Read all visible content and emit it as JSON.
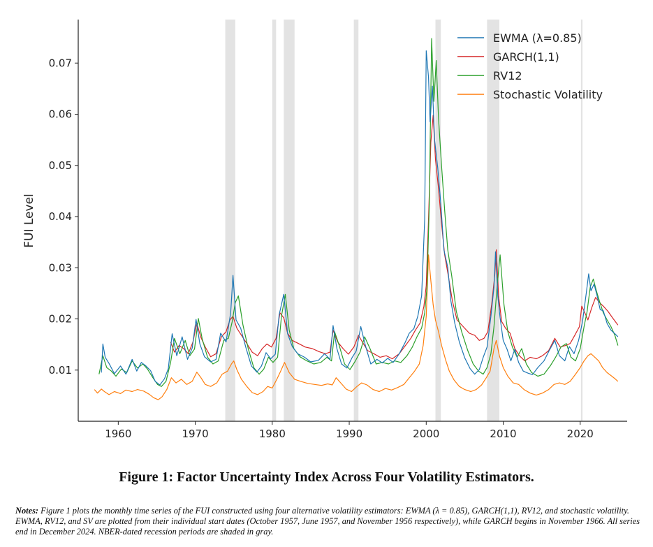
{
  "chart_data": {
    "type": "line",
    "ylabel": "FUI Level",
    "xlim": [
      1954.8,
      2026.1
    ],
    "ylim": [
      0.0,
      0.0785
    ],
    "x_ticks": [
      1960,
      1970,
      1980,
      1990,
      2000,
      2010,
      2020
    ],
    "x_tick_labels": [
      "1960",
      "1970",
      "1980",
      "1990",
      "2000",
      "2010",
      "2020"
    ],
    "y_ticks": [
      0.01,
      0.02,
      0.03,
      0.04,
      0.05,
      0.06,
      0.07
    ],
    "y_tick_labels": [
      "0.01",
      "0.02",
      "0.03",
      "0.04",
      "0.05",
      "0.06",
      "0.07"
    ],
    "legend_position": "top-right",
    "grid": false,
    "recessions": [
      [
        1973.9,
        1975.2
      ],
      [
        1980.0,
        1980.5
      ],
      [
        1981.5,
        1982.9
      ],
      [
        1990.6,
        1991.2
      ],
      [
        2001.2,
        2001.9
      ],
      [
        2007.9,
        2009.5
      ],
      [
        2020.1,
        2020.3
      ]
    ],
    "recession_color": "#e3e3e3",
    "series": [
      {
        "name": "EWMA (λ=0.85)",
        "color": "#1f77b4",
        "x": [
          1957.8,
          1958.0,
          1958.3,
          1958.8,
          1959.5,
          1960.3,
          1961.0,
          1961.8,
          1962.4,
          1963.0,
          1963.6,
          1964.2,
          1964.8,
          1965.4,
          1966.0,
          1966.5,
          1967.0,
          1967.6,
          1968.3,
          1969.0,
          1969.6,
          1970.1,
          1970.6,
          1971.2,
          1972.0,
          1972.7,
          1973.3,
          1974.0,
          1974.6,
          1974.9,
          1975.3,
          1975.9,
          1976.6,
          1977.3,
          1978.0,
          1978.6,
          1979.2,
          1979.8,
          1980.4,
          1980.9,
          1981.5,
          1982.0,
          1982.6,
          1983.3,
          1984.2,
          1985.0,
          1986.0,
          1986.8,
          1987.5,
          1987.9,
          1988.4,
          1989.0,
          1989.7,
          1990.4,
          1990.9,
          1991.5,
          1992.1,
          1992.8,
          1993.6,
          1994.3,
          1995.0,
          1995.7,
          1996.5,
          1997.2,
          1997.8,
          1998.4,
          1998.9,
          1999.4,
          1999.8,
          2000.0,
          2000.3,
          2000.5,
          2000.8,
          2001.1,
          2001.5,
          2001.9,
          2002.3,
          2002.8,
          2003.2,
          2003.7,
          2004.3,
          2005.0,
          2005.7,
          2006.3,
          2006.9,
          2007.4,
          2007.9,
          2008.4,
          2008.8,
          2009.0,
          2009.3,
          2009.6,
          2010.0,
          2010.5,
          2011.0,
          2011.5,
          2012.0,
          2012.6,
          2013.2,
          2013.8,
          2014.5,
          2015.3,
          2016.0,
          2016.7,
          2017.3,
          2018.0,
          2018.6,
          2019.2,
          2019.8,
          2020.3,
          2020.8,
          2021.1,
          2021.4,
          2021.8,
          2022.2,
          2022.6,
          2023.0,
          2023.5,
          2024.0,
          2024.5,
          2024.9
        ],
        "y": [
          0.0095,
          0.0151,
          0.0125,
          0.0113,
          0.0093,
          0.0108,
          0.0092,
          0.0121,
          0.0098,
          0.0115,
          0.0108,
          0.0099,
          0.0078,
          0.0071,
          0.0083,
          0.0103,
          0.0171,
          0.0128,
          0.0165,
          0.0121,
          0.0143,
          0.0199,
          0.0151,
          0.0126,
          0.0116,
          0.0121,
          0.0172,
          0.0155,
          0.0212,
          0.0285,
          0.0198,
          0.0182,
          0.0143,
          0.0108,
          0.0096,
          0.0108,
          0.0134,
          0.0122,
          0.0131,
          0.0208,
          0.0248,
          0.0171,
          0.0146,
          0.0132,
          0.0125,
          0.0116,
          0.0119,
          0.0132,
          0.0121,
          0.0187,
          0.0142,
          0.0112,
          0.0104,
          0.0125,
          0.0137,
          0.0185,
          0.0148,
          0.0112,
          0.0121,
          0.0114,
          0.0123,
          0.0115,
          0.0132,
          0.0152,
          0.0172,
          0.0181,
          0.0205,
          0.0245,
          0.0395,
          0.0724,
          0.0672,
          0.0585,
          0.0655,
          0.0548,
          0.0495,
          0.0425,
          0.0335,
          0.0301,
          0.0235,
          0.0192,
          0.0155,
          0.0124,
          0.0103,
          0.0092,
          0.0101,
          0.0125,
          0.0145,
          0.0205,
          0.0262,
          0.0331,
          0.0245,
          0.0202,
          0.0158,
          0.0141,
          0.0118,
          0.0141,
          0.0115,
          0.0098,
          0.0094,
          0.0091,
          0.0105,
          0.0118,
          0.0139,
          0.0158,
          0.0128,
          0.0118,
          0.0146,
          0.0132,
          0.0158,
          0.0195,
          0.0252,
          0.0288,
          0.0255,
          0.0268,
          0.0245,
          0.0218,
          0.0216,
          0.0191,
          0.0178,
          0.0171,
          0.0165
        ]
      },
      {
        "name": "GARCH(1,1)",
        "color": "#d62728",
        "x": [
          1966.8,
          1967.3,
          1967.9,
          1968.5,
          1969.1,
          1969.7,
          1970.2,
          1970.7,
          1971.3,
          1972.0,
          1972.7,
          1973.4,
          1974.0,
          1974.5,
          1974.9,
          1975.4,
          1976.0,
          1976.7,
          1977.4,
          1978.1,
          1978.7,
          1979.3,
          1979.9,
          1980.5,
          1981.0,
          1981.5,
          1982.0,
          1982.6,
          1983.4,
          1984.3,
          1985.2,
          1986.1,
          1986.9,
          1987.5,
          1987.9,
          1988.5,
          1989.2,
          1989.9,
          1990.6,
          1991.2,
          1991.7,
          1992.4,
          1993.2,
          1994.0,
          1994.8,
          1995.6,
          1996.5,
          1997.3,
          1998.0,
          1998.6,
          1999.2,
          1999.7,
          2000.0,
          2000.3,
          2000.6,
          2000.9,
          2001.2,
          2001.6,
          2002.0,
          2002.4,
          2002.9,
          2003.4,
          2004.0,
          2004.8,
          2005.6,
          2006.3,
          2006.9,
          2007.5,
          2008.0,
          2008.5,
          2008.9,
          2009.1,
          2009.4,
          2009.8,
          2010.3,
          2010.9,
          2011.5,
          2012.1,
          2012.8,
          2013.5,
          2014.3,
          2015.1,
          2015.9,
          2016.7,
          2017.4,
          2018.1,
          2018.7,
          2019.3,
          2019.9,
          2020.2,
          2020.6,
          2021.0,
          2021.5,
          2022.0,
          2022.5,
          2023.0,
          2023.6,
          2024.2,
          2024.9
        ],
        "y": [
          0.0155,
          0.0135,
          0.0148,
          0.0142,
          0.0132,
          0.0155,
          0.0192,
          0.0165,
          0.0145,
          0.0126,
          0.0132,
          0.0165,
          0.0175,
          0.0198,
          0.0205,
          0.0182,
          0.0168,
          0.0152,
          0.0135,
          0.0128,
          0.0142,
          0.0151,
          0.0145,
          0.0162,
          0.0212,
          0.0202,
          0.0172,
          0.0158,
          0.0152,
          0.0145,
          0.0142,
          0.0136,
          0.0132,
          0.0135,
          0.0178,
          0.0155,
          0.0142,
          0.0131,
          0.0145,
          0.0168,
          0.0155,
          0.0138,
          0.0132,
          0.0125,
          0.0128,
          0.0122,
          0.0132,
          0.0148,
          0.0162,
          0.0178,
          0.0192,
          0.0225,
          0.0265,
          0.0395,
          0.0545,
          0.0598,
          0.0512,
          0.0455,
          0.0385,
          0.0325,
          0.0282,
          0.0235,
          0.0198,
          0.0185,
          0.0172,
          0.0168,
          0.0158,
          0.0162,
          0.0175,
          0.0228,
          0.0285,
          0.0335,
          0.0245,
          0.0195,
          0.0182,
          0.0172,
          0.0142,
          0.0128,
          0.0118,
          0.0125,
          0.0122,
          0.0128,
          0.0138,
          0.0162,
          0.0145,
          0.0148,
          0.0152,
          0.0168,
          0.0185,
          0.0225,
          0.0212,
          0.0198,
          0.0222,
          0.0242,
          0.0232,
          0.0225,
          0.0215,
          0.0202,
          0.0188
        ]
      },
      {
        "name": "RV12",
        "color": "#2ca02c",
        "x": [
          1957.5,
          1958.0,
          1958.5,
          1959.1,
          1959.7,
          1960.4,
          1961.1,
          1961.8,
          1962.5,
          1963.2,
          1963.8,
          1964.5,
          1965.1,
          1965.6,
          1966.2,
          1966.8,
          1967.3,
          1968.0,
          1968.7,
          1969.3,
          1969.9,
          1970.4,
          1970.9,
          1971.6,
          1972.3,
          1973.0,
          1973.7,
          1974.3,
          1974.8,
          1975.2,
          1975.6,
          1976.2,
          1976.9,
          1977.6,
          1978.3,
          1978.9,
          1979.5,
          1980.1,
          1980.7,
          1981.2,
          1981.7,
          1982.2,
          1982.8,
          1983.6,
          1984.5,
          1985.4,
          1986.3,
          1987.1,
          1987.7,
          1988.1,
          1988.7,
          1989.4,
          1990.1,
          1990.8,
          1991.4,
          1992.0,
          1992.7,
          1993.5,
          1994.3,
          1995.1,
          1995.9,
          1996.7,
          1997.5,
          1998.2,
          1998.8,
          1999.4,
          1999.8,
          2000.1,
          2000.4,
          2000.7,
          2001.0,
          2001.3,
          2001.6,
          2002.0,
          2002.4,
          2002.8,
          2003.3,
          2003.9,
          2004.6,
          2005.4,
          2006.1,
          2006.8,
          2007.4,
          2007.9,
          2008.4,
          2008.8,
          2009.2,
          2009.6,
          2010.1,
          2010.6,
          2011.2,
          2011.8,
          2012.4,
          2013.0,
          2013.7,
          2014.5,
          2015.3,
          2016.1,
          2016.8,
          2017.5,
          2018.2,
          2018.8,
          2019.4,
          2020.0,
          2020.5,
          2020.9,
          2021.3,
          2021.7,
          2022.1,
          2022.5,
          2023.0,
          2023.5,
          2024.0,
          2024.5,
          2024.9
        ],
        "y": [
          0.0092,
          0.0128,
          0.0105,
          0.0098,
          0.0088,
          0.0102,
          0.0095,
          0.0118,
          0.0104,
          0.0112,
          0.0102,
          0.0085,
          0.0072,
          0.0068,
          0.0078,
          0.0115,
          0.0162,
          0.0132,
          0.0158,
          0.0128,
          0.0141,
          0.0201,
          0.0161,
          0.0125,
          0.0112,
          0.0118,
          0.0158,
          0.0162,
          0.0195,
          0.0232,
          0.0245,
          0.0188,
          0.0141,
          0.0105,
          0.0092,
          0.0102,
          0.0125,
          0.0115,
          0.0125,
          0.0205,
          0.0248,
          0.0178,
          0.0142,
          0.0126,
          0.0118,
          0.0112,
          0.0115,
          0.0125,
          0.0118,
          0.0175,
          0.0148,
          0.0112,
          0.0101,
          0.0118,
          0.0135,
          0.0165,
          0.0142,
          0.0112,
          0.0115,
          0.0112,
          0.0118,
          0.0115,
          0.0128,
          0.0145,
          0.0165,
          0.0182,
          0.0212,
          0.0262,
          0.0425,
          0.0748,
          0.0625,
          0.0705,
          0.0592,
          0.0498,
          0.0412,
          0.0335,
          0.0285,
          0.0215,
          0.0175,
          0.0138,
          0.0112,
          0.0098,
          0.0092,
          0.0105,
          0.0132,
          0.0185,
          0.0262,
          0.0325,
          0.0228,
          0.0175,
          0.0145,
          0.0125,
          0.0142,
          0.0112,
          0.0095,
          0.0088,
          0.0092,
          0.0108,
          0.0125,
          0.0145,
          0.0152,
          0.0125,
          0.0118,
          0.0142,
          0.0185,
          0.0215,
          0.0262,
          0.0278,
          0.0255,
          0.0235,
          0.0212,
          0.0198,
          0.0185,
          0.0168,
          0.0148
        ]
      },
      {
        "name": "Stochastic Volatility",
        "color": "#ff7f0e",
        "x": [
          1956.9,
          1957.3,
          1957.8,
          1958.2,
          1958.8,
          1959.5,
          1960.3,
          1961.0,
          1961.8,
          1962.5,
          1963.3,
          1964.0,
          1964.6,
          1965.2,
          1965.7,
          1966.3,
          1966.9,
          1967.5,
          1968.2,
          1968.9,
          1969.6,
          1970.2,
          1970.7,
          1971.3,
          1972.0,
          1972.8,
          1973.5,
          1974.2,
          1974.7,
          1975.0,
          1975.4,
          1976.0,
          1976.7,
          1977.4,
          1978.1,
          1978.8,
          1979.4,
          1980.0,
          1980.6,
          1981.1,
          1981.6,
          1982.2,
          1982.9,
          1983.7,
          1984.6,
          1985.5,
          1986.4,
          1987.2,
          1987.8,
          1988.3,
          1988.9,
          1989.6,
          1990.3,
          1991.0,
          1991.6,
          1992.3,
          1993.1,
          1993.9,
          1994.7,
          1995.5,
          1996.3,
          1997.1,
          1997.8,
          1998.5,
          1999.1,
          1999.6,
          2000.0,
          2000.3,
          2000.6,
          2000.9,
          2001.2,
          2001.6,
          2002.0,
          2002.5,
          2003.0,
          2003.6,
          2004.3,
          2005.0,
          2005.8,
          2006.5,
          2007.2,
          2007.8,
          2008.3,
          2008.8,
          2009.1,
          2009.5,
          2010.0,
          2010.6,
          2011.3,
          2012.0,
          2012.7,
          2013.5,
          2014.3,
          2015.1,
          2015.9,
          2016.6,
          2017.3,
          2018.0,
          2018.7,
          2019.4,
          2020.0,
          2020.5,
          2021.0,
          2021.4,
          2021.9,
          2022.4,
          2022.9,
          2023.5,
          2024.1,
          2024.6,
          2024.9
        ],
        "y": [
          0.0062,
          0.0055,
          0.0063,
          0.0058,
          0.0052,
          0.0058,
          0.0054,
          0.0061,
          0.0058,
          0.0062,
          0.0059,
          0.0053,
          0.0046,
          0.0042,
          0.0048,
          0.0062,
          0.0085,
          0.0075,
          0.0082,
          0.0072,
          0.0078,
          0.0096,
          0.0086,
          0.0072,
          0.0068,
          0.0075,
          0.0092,
          0.0098,
          0.0112,
          0.0118,
          0.0101,
          0.0082,
          0.0068,
          0.0056,
          0.0052,
          0.0058,
          0.0068,
          0.0065,
          0.0082,
          0.0098,
          0.0115,
          0.0095,
          0.0082,
          0.0078,
          0.0074,
          0.0072,
          0.007,
          0.0073,
          0.0071,
          0.0085,
          0.0075,
          0.0063,
          0.0058,
          0.0068,
          0.0075,
          0.0071,
          0.0062,
          0.0058,
          0.0064,
          0.0061,
          0.0066,
          0.0072,
          0.0085,
          0.0098,
          0.0112,
          0.0148,
          0.0205,
          0.0325,
          0.0275,
          0.0228,
          0.0198,
          0.0175,
          0.0148,
          0.0121,
          0.0098,
          0.0081,
          0.0068,
          0.0062,
          0.0058,
          0.0062,
          0.0071,
          0.0085,
          0.0098,
          0.0142,
          0.0158,
          0.0128,
          0.0105,
          0.0088,
          0.0075,
          0.0072,
          0.0062,
          0.0055,
          0.0051,
          0.0055,
          0.0062,
          0.0072,
          0.0075,
          0.0072,
          0.0078,
          0.0092,
          0.0105,
          0.0118,
          0.0128,
          0.0132,
          0.0125,
          0.0118,
          0.0105,
          0.0095,
          0.0088,
          0.0082,
          0.0078
        ]
      }
    ]
  },
  "caption": "Figure 1: Factor Uncertainty Index Across Four Volatility Estimators.",
  "notes": {
    "label": "Notes:",
    "text": "Figure 1 plots the monthly time series of the FUI constructed using four alternative volatility estimators: EWMA (λ = 0.85), GARCH(1,1), RV12, and stochastic volatility. EWMA, RV12, and SV are plotted from their individual start dates (October 1957, June 1957, and November 1956 respectively), while GARCH begins in November 1966. All series end in December 2024. NBER-dated recession periods are shaded in gray."
  }
}
